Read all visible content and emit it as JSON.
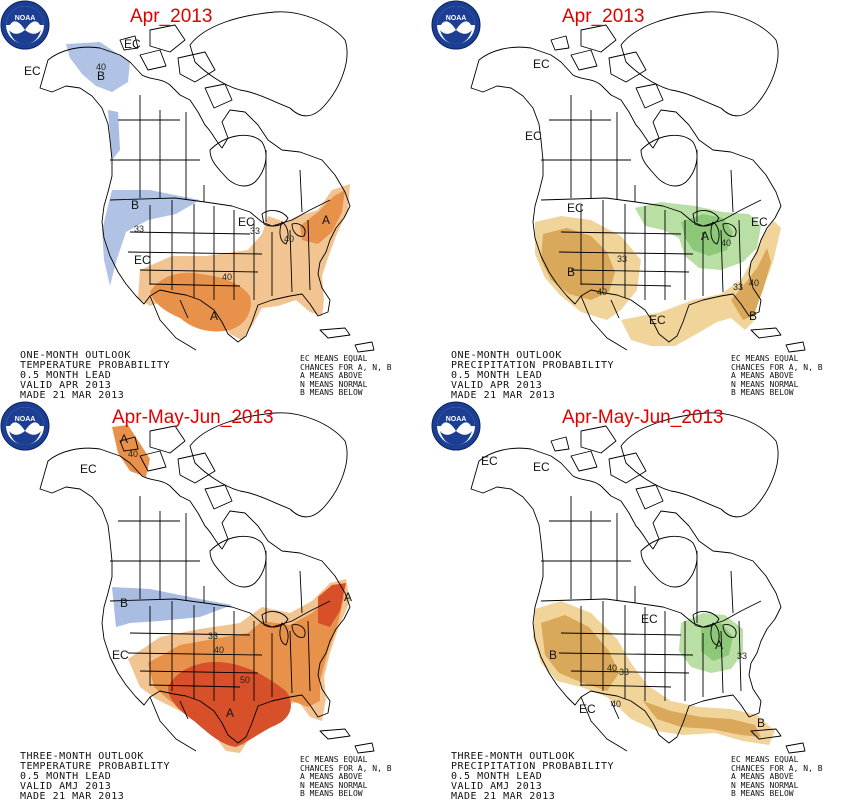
{
  "panels": [
    {
      "title": "Apr_2013",
      "legend": [
        "ONE-MONTH OUTLOOK",
        "TEMPERATURE PROBABILITY",
        "0.5 MONTH LEAD",
        "VALID APR 2013",
        "MADE 21 MAR 2013"
      ],
      "labels": {
        "ec1": "EC",
        "ec2": "EC",
        "ec3": "EC",
        "ec4": "EC",
        "b1": "B",
        "b2": "B",
        "a1": "A",
        "a2": "A",
        "c40a": "40",
        "c40b": "40",
        "c40c": "40",
        "c33a": "33",
        "c33b": "33"
      }
    },
    {
      "title": "Apr_2013",
      "legend": [
        "ONE-MONTH OUTLOOK",
        "PRECIPITATION PROBABILITY",
        "0.5 MONTH LEAD",
        "VALID APR 2013",
        "MADE 21 MAR 2013"
      ],
      "labels": {
        "ec1": "EC",
        "ec2": "EC",
        "ec3": "EC",
        "ec4": "EC",
        "ec5": "EC",
        "b1": "B",
        "b2": "B",
        "a1": "A",
        "c40a": "40",
        "c40b": "40",
        "c40c": "40",
        "c33a": "33",
        "c33b": "33"
      }
    },
    {
      "title": "Apr-May-Jun_2013",
      "legend": [
        "THREE-MONTH OUTLOOK",
        "TEMPERATURE PROBABILITY",
        "0.5 MONTH LEAD",
        "VALID AMJ 2013",
        "MADE 21 MAR 2013"
      ],
      "labels": {
        "ec1": "EC",
        "ec2": "EC",
        "b1": "B",
        "a1": "A",
        "a2": "A",
        "a3": "A",
        "c40a": "40",
        "c40b": "40",
        "c50": "50",
        "c33a": "33"
      }
    },
    {
      "title": "Apr-May-Jun_2013",
      "legend": [
        "THREE-MONTH OUTLOOK",
        "PRECIPITATION PROBABILITY",
        "0.5 MONTH LEAD",
        "VALID AMJ 2013",
        "MADE 21 MAR 2013"
      ],
      "labels": {
        "ec1": "EC",
        "ec2": "EC",
        "ec3": "EC",
        "ec4": "EC",
        "b1": "B",
        "b2": "B",
        "a1": "A",
        "c40a": "40",
        "c40b": "40",
        "c33a": "33",
        "c33b": "33"
      }
    }
  ],
  "ec_legend": [
    "EC MEANS EQUAL",
    "CHANCES FOR A, N, B",
    "A MEANS ABOVE",
    "N MEANS NORMAL",
    "B MEANS BELOW"
  ],
  "colors": {
    "title": "#e00000",
    "temp_below": "#a9bce2",
    "temp_above_33": "#f2c491",
    "temp_above_40": "#e8914a",
    "temp_above_50": "#d8502a",
    "precip_below_33": "#f0d49a",
    "precip_below_40": "#d9a85a",
    "precip_above_33": "#b9dfa4",
    "precip_above_40": "#8cc878"
  }
}
